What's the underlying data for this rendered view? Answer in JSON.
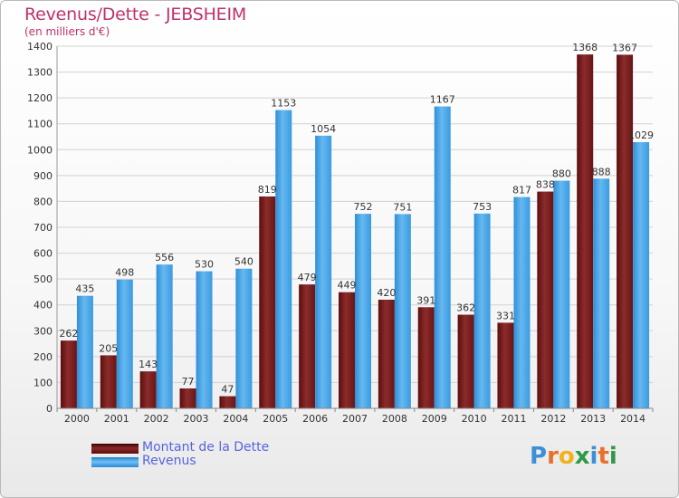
{
  "title": "Revenus/Dette - JEBSHEIM",
  "subtitle": "(en milliers d'€)",
  "logo_text": "Proxiti",
  "chart_data": {
    "type": "bar",
    "categories": [
      "2000",
      "2001",
      "2002",
      "2003",
      "2004",
      "2005",
      "2006",
      "2007",
      "2008",
      "2009",
      "2010",
      "2011",
      "2012",
      "2013",
      "2014"
    ],
    "series": [
      {
        "name": "Montant de la Dette",
        "color": "#7a1f1f",
        "values": [
          262,
          205,
          143,
          77,
          47,
          819,
          479,
          449,
          420,
          391,
          362,
          331,
          838,
          1368,
          1367
        ]
      },
      {
        "name": "Revenus",
        "color": "#4aa8e8",
        "values": [
          435,
          498,
          556,
          530,
          540,
          1153,
          1054,
          752,
          751,
          1167,
          753,
          817,
          880,
          888,
          1029
        ]
      }
    ],
    "ylim": [
      0,
      1400
    ],
    "yticks": [
      0,
      100,
      200,
      300,
      400,
      500,
      600,
      700,
      800,
      900,
      1000,
      1100,
      1200,
      1300,
      1400
    ],
    "grid": true,
    "legend_position": "bottom-left"
  }
}
